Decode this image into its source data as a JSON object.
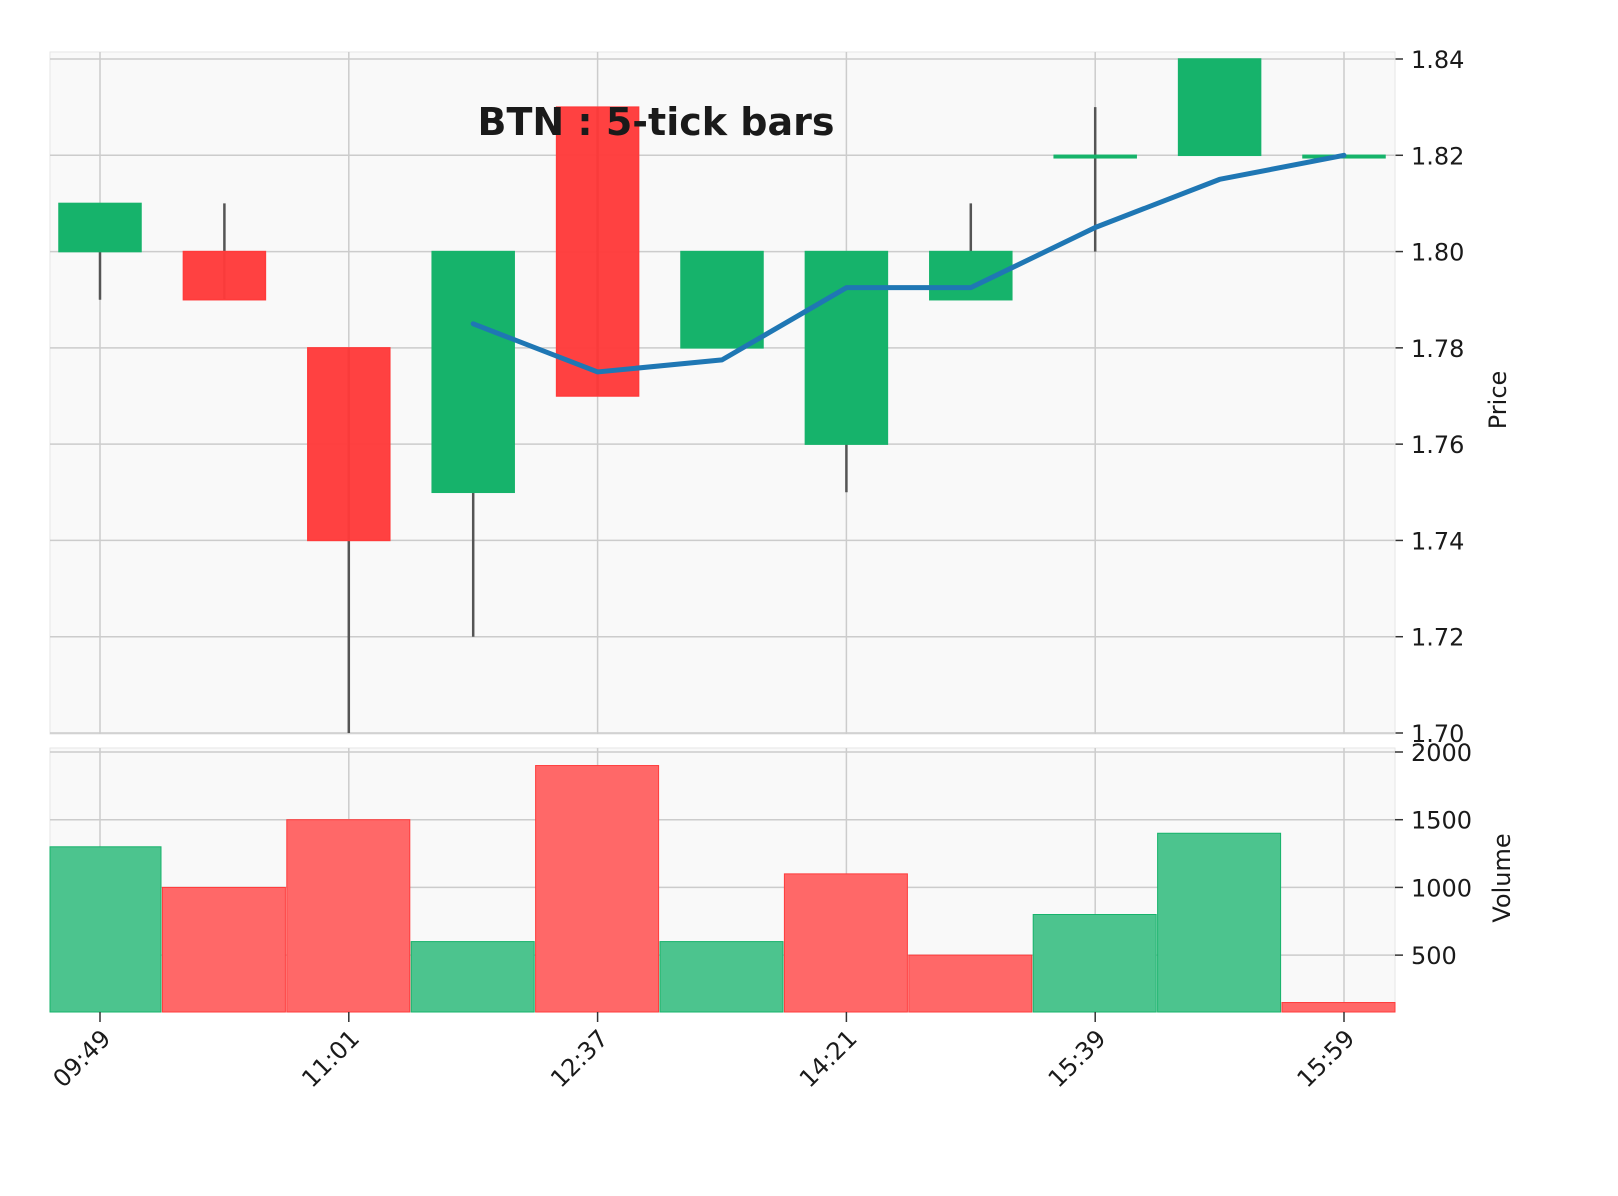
{
  "chart_data": {
    "type": "candlestick",
    "title": "BTN : 5-tick bars",
    "x_tick_labels": [
      "09:49",
      "11:01",
      "12:37",
      "14:21",
      "15:39",
      "15:59"
    ],
    "x_tick_bar_index": [
      0,
      2,
      4,
      6,
      8,
      10
    ],
    "price_panel": {
      "ylabel": "Price",
      "ylim": [
        1.7,
        1.84
      ],
      "yticks": [
        1.7,
        1.72,
        1.74,
        1.76,
        1.78,
        1.8,
        1.82,
        1.84
      ],
      "ytick_labels": [
        "1.70",
        "1.72",
        "1.74",
        "1.76",
        "1.78",
        "1.80",
        "1.82",
        "1.84"
      ],
      "ohlc": [
        {
          "open": 1.8,
          "high": 1.81,
          "low": 1.79,
          "close": 1.81
        },
        {
          "open": 1.8,
          "high": 1.81,
          "low": 1.79,
          "close": 1.79
        },
        {
          "open": 1.78,
          "high": 1.78,
          "low": 1.7,
          "close": 1.74
        },
        {
          "open": 1.75,
          "high": 1.8,
          "low": 1.72,
          "close": 1.8
        },
        {
          "open": 1.83,
          "high": 1.83,
          "low": 1.77,
          "close": 1.77
        },
        {
          "open": 1.78,
          "high": 1.8,
          "low": 1.78,
          "close": 1.8
        },
        {
          "open": 1.76,
          "high": 1.8,
          "low": 1.75,
          "close": 1.8
        },
        {
          "open": 1.79,
          "high": 1.81,
          "low": 1.79,
          "close": 1.8
        },
        {
          "open": 1.82,
          "high": 1.83,
          "low": 1.8,
          "close": 1.82
        },
        {
          "open": 1.82,
          "high": 1.84,
          "low": 1.82,
          "close": 1.84
        },
        {
          "open": 1.82,
          "high": 1.82,
          "low": 1.82,
          "close": 1.82
        }
      ],
      "moving_average": {
        "start_index": 3,
        "values": [
          1.785,
          1.775,
          1.7775,
          1.7925,
          1.7925,
          1.805,
          1.815,
          1.82
        ]
      }
    },
    "volume_panel": {
      "ylabel": "Volume",
      "ylim": [
        80,
        2000
      ],
      "yticks": [
        500,
        1000,
        1500,
        2000
      ],
      "ytick_labels": [
        "500",
        "1000",
        "1500",
        "2000"
      ],
      "values": [
        1300,
        1000,
        1500,
        600,
        1900,
        600,
        1100,
        500,
        800,
        1400,
        150
      ],
      "direction": [
        "up",
        "down",
        "down",
        "up",
        "down",
        "up",
        "down",
        "down",
        "up",
        "up",
        "down"
      ]
    },
    "colors": {
      "up": "#16b36b",
      "down": "#ff3b3b",
      "volume_up": "#4cc48e",
      "volume_down": "#ff6868",
      "moving_average": "#1f77b4",
      "wick": "#555555",
      "panel_bg": "#f9f9f9",
      "grid": "#cccccc"
    },
    "grid": true
  }
}
